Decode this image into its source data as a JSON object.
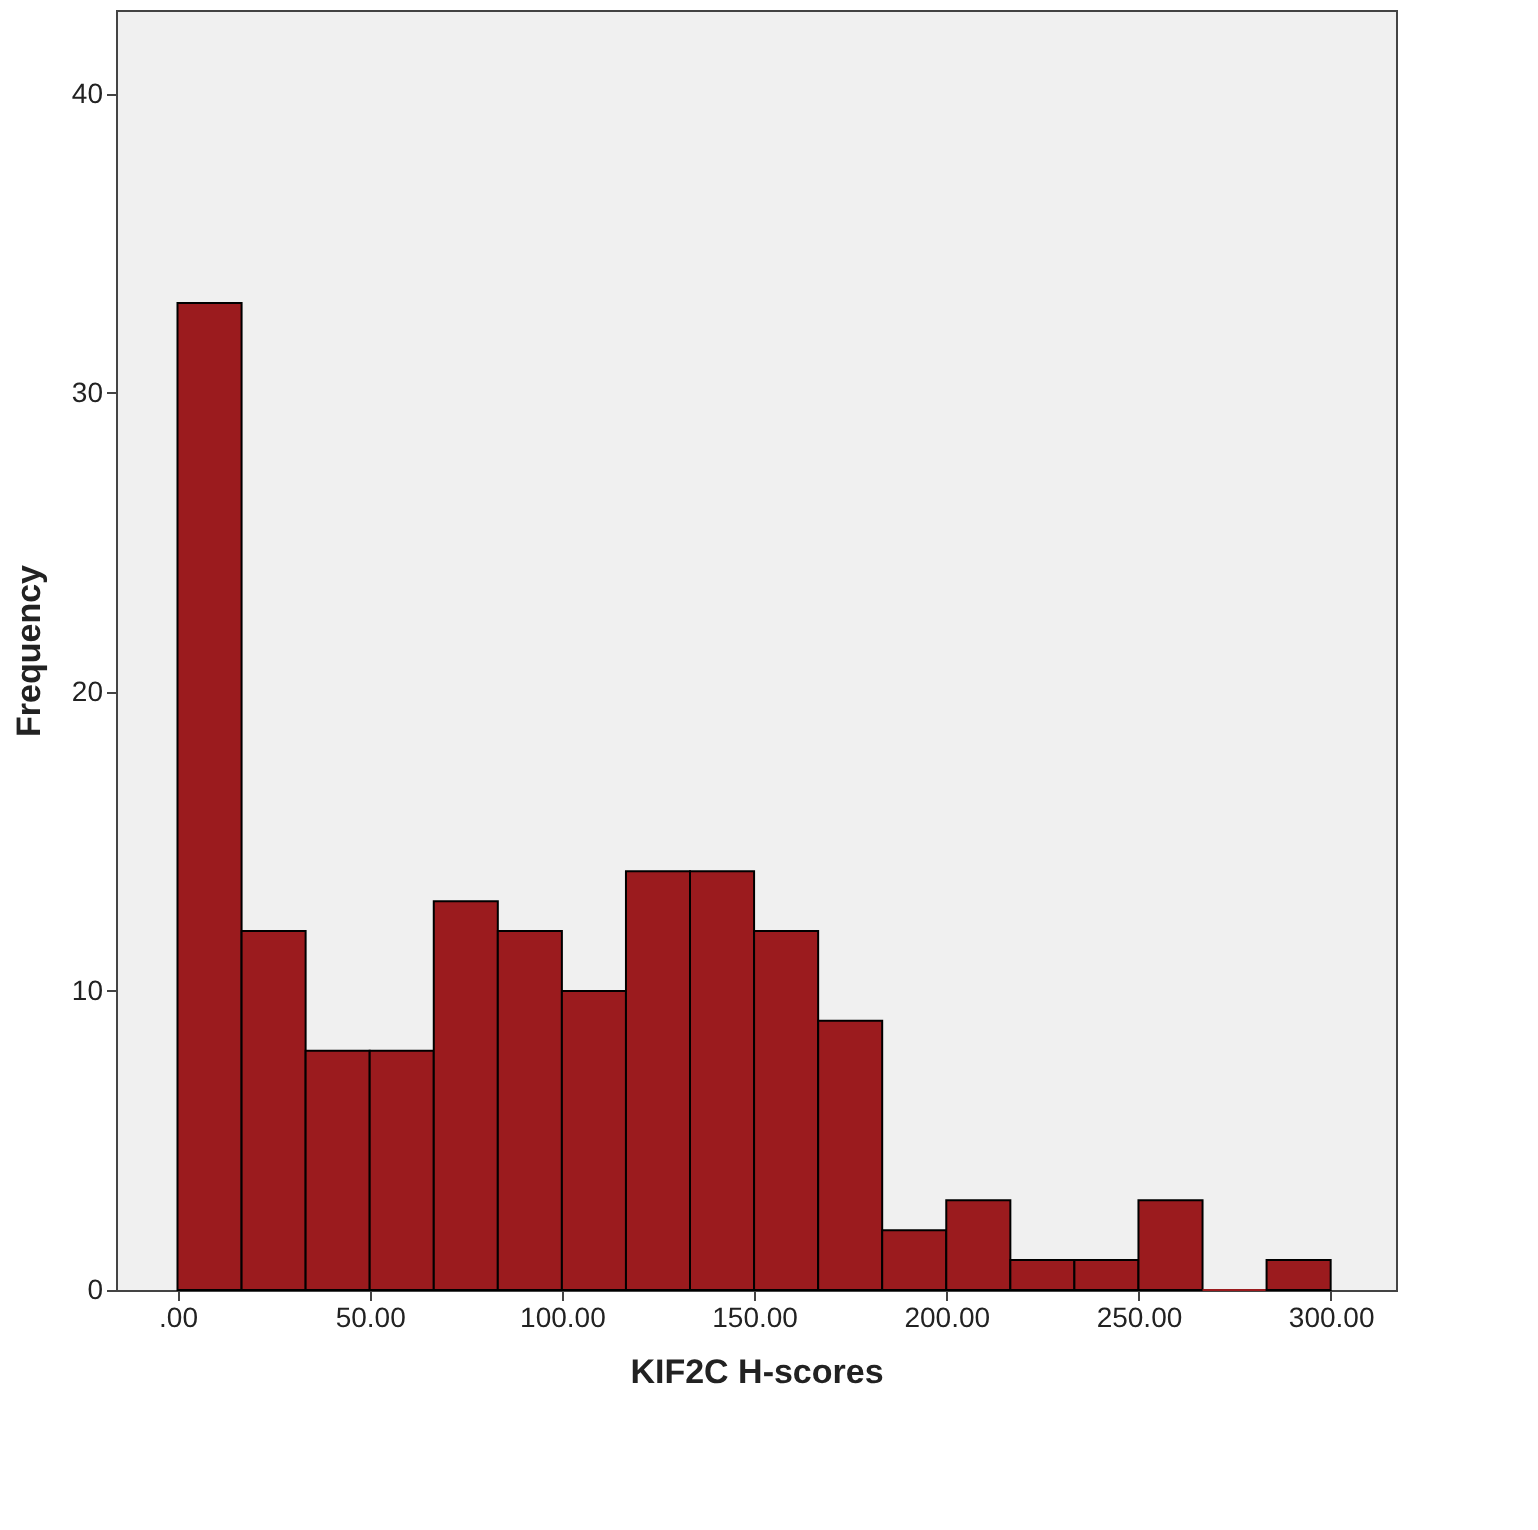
{
  "chart_data": {
    "type": "histogram",
    "xlabel": "KIF2C H-scores",
    "ylabel": "Frequency",
    "bins": [
      0,
      16.67,
      33.33,
      50,
      66.67,
      83.33,
      100,
      116.67,
      133.33,
      150,
      166.67,
      183.33,
      200,
      216.67,
      233.33,
      250,
      266.67,
      283.33,
      300
    ],
    "values": [
      33,
      12,
      8,
      8,
      13,
      12,
      10,
      14,
      14,
      12,
      9,
      2,
      3,
      1,
      1,
      3,
      0,
      1
    ],
    "color": "#9b1b1e",
    "xlim": [
      -16,
      317
    ],
    "ylim": [
      0,
      42.8
    ],
    "xticks": [
      {
        "value": 0,
        "label": ".00"
      },
      {
        "value": 50,
        "label": "50.00"
      },
      {
        "value": 100,
        "label": "100.00"
      },
      {
        "value": 150,
        "label": "150.00"
      },
      {
        "value": 200,
        "label": "200.00"
      },
      {
        "value": 250,
        "label": "250.00"
      },
      {
        "value": 300,
        "label": "300.00"
      }
    ],
    "yticks": [
      0,
      10,
      20,
      30,
      40
    ],
    "grid": false
  }
}
